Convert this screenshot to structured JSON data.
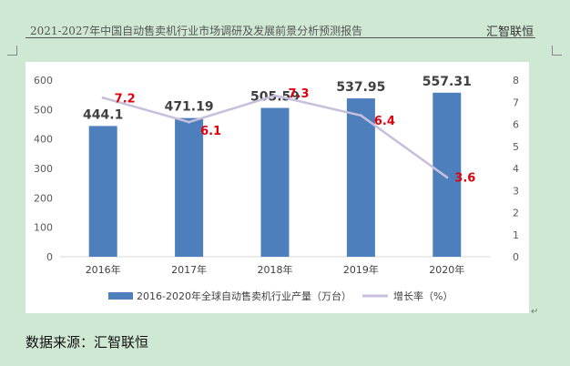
{
  "header": {
    "title": "2021-2027年中国自动售卖机行业市场调研及发展前景分析预测报告",
    "brand": "汇智联恒"
  },
  "source": "数据来源：汇智联恒",
  "chart_data": {
    "type": "bar",
    "categories": [
      "2016年",
      "2017年",
      "2018年",
      "2019年",
      "2020年"
    ],
    "series": [
      {
        "name": "2016-2020年全球自动售卖机行业产量（万台）",
        "type": "bar",
        "axis": "left",
        "color": "#4e7fbd",
        "values": [
          444.1,
          471.19,
          505.59,
          537.95,
          557.31
        ],
        "labels": [
          "444.1",
          "471.19",
          "505.59",
          "537.95",
          "557.31"
        ]
      },
      {
        "name": "增长率（%）",
        "type": "line",
        "axis": "right",
        "color": "#c7bfdc",
        "values": [
          7.2,
          6.1,
          7.3,
          6.4,
          3.6
        ],
        "labels": [
          "7.2",
          "6.1",
          "7.3",
          "6.4",
          "3.6"
        ],
        "label_color": "#e0000e"
      }
    ],
    "y_left": {
      "min": 0,
      "max": 600,
      "ticks": [
        "0",
        "100",
        "200",
        "300",
        "400",
        "500",
        "600"
      ]
    },
    "y_right": {
      "min": 0,
      "max": 8,
      "ticks": [
        "0",
        "1",
        "2",
        "3",
        "4",
        "5",
        "6",
        "7",
        "8"
      ]
    },
    "grid": false,
    "legend_position": "bottom"
  }
}
